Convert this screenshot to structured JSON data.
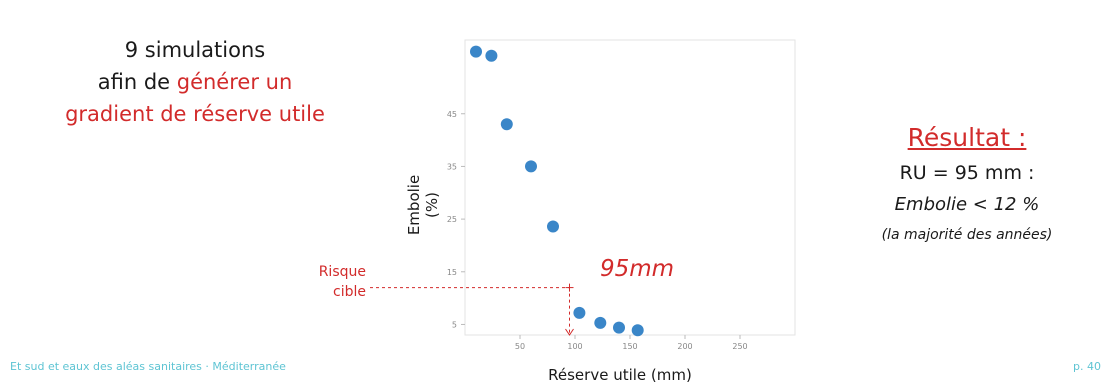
{
  "left_text": {
    "line1": "9 simulations",
    "line2_prefix": "afin de ",
    "line2_highlight": "générer un",
    "line3": "gradient de réserve utile"
  },
  "result": {
    "title": "Résultat :",
    "line1": "RU = 95 mm :",
    "line2": "Embolie < 12 %",
    "line3": "(la majorité des années)"
  },
  "target_label": {
    "line1": "Risque",
    "line2": "cible"
  },
  "footer": {
    "left": "Et sud et eaux des aléas sanitaires · Méditerranée",
    "right": "p. 40"
  },
  "colors": {
    "accent_red": "#d22b2b",
    "point_blue": "#3a86c8",
    "footer_cyan": "#5ec4d3"
  },
  "chart_data": {
    "type": "scatter",
    "xlabel": "Réserve utile (mm)",
    "ylabel_line1": "Embolie",
    "ylabel_line2": "(%)",
    "xlim": [
      0,
      300
    ],
    "ylim": [
      3,
      59
    ],
    "x_ticks": [
      {
        "value": 50,
        "label": "50"
      },
      {
        "value": 100,
        "label": "100"
      },
      {
        "value": 150,
        "label": "150"
      },
      {
        "value": 200,
        "label": "200"
      },
      {
        "value": 250,
        "label": "250"
      }
    ],
    "y_ticks": [
      {
        "value": 5,
        "label": "5"
      },
      {
        "value": 15,
        "label": "15"
      },
      {
        "value": 25,
        "label": "25"
      },
      {
        "value": 35,
        "label": "35"
      },
      {
        "value": 45,
        "label": "45"
      }
    ],
    "series": [
      {
        "points": [
          {
            "x": 10,
            "y": 56.8
          },
          {
            "x": 24,
            "y": 56.0
          },
          {
            "x": 38,
            "y": 43.0
          },
          {
            "x": 60,
            "y": 35.0
          },
          {
            "x": 80,
            "y": 23.6
          },
          {
            "x": 104,
            "y": 7.2
          },
          {
            "x": 123,
            "y": 5.3
          },
          {
            "x": 140,
            "y": 4.4
          },
          {
            "x": 157,
            "y": 3.9
          }
        ]
      }
    ],
    "annotation": {
      "text": "95mm",
      "target_x": 95,
      "target_y": 12
    }
  }
}
